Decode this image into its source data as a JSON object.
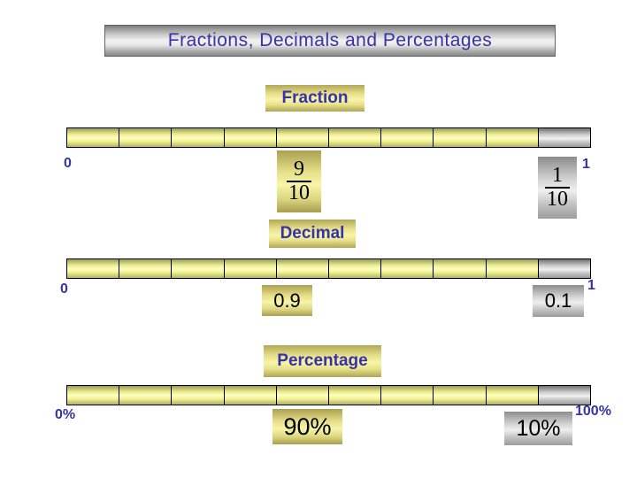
{
  "slide": {
    "title": "Fractions, Decimals and Percentages"
  },
  "colors": {
    "accent_blue": "#3632a8",
    "shaded_yellow_mid": "#ffffbd",
    "remainder_gray_mid": "#f1f1f1",
    "value_text": "#000000"
  },
  "rows": [
    {
      "label": "Fraction",
      "left_label": "0",
      "right_label": "1",
      "bar": {
        "total_segments": 10,
        "shaded_segments": 9
      },
      "main_value": {
        "numerator": "9",
        "denominator": "10"
      },
      "secondary_value": {
        "numerator": "1",
        "denominator": "10"
      }
    },
    {
      "label": "Decimal",
      "left_label": "0",
      "right_label": "1",
      "bar": {
        "total_segments": 10,
        "shaded_segments": 9
      },
      "main_value": "0.9",
      "secondary_value": "0.1"
    },
    {
      "label": "Percentage",
      "left_label": "0%",
      "right_label": "100%",
      "bar": {
        "total_segments": 10,
        "shaded_segments": 9
      },
      "main_value": "90%",
      "secondary_value": "10%"
    }
  ]
}
